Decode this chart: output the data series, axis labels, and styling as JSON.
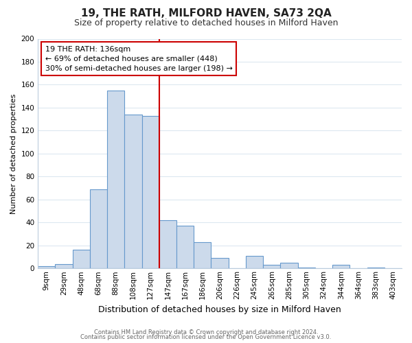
{
  "title": "19, THE RATH, MILFORD HAVEN, SA73 2QA",
  "subtitle": "Size of property relative to detached houses in Milford Haven",
  "xlabel": "Distribution of detached houses by size in Milford Haven",
  "ylabel": "Number of detached properties",
  "bar_color": "#ccdaeb",
  "bar_edge_color": "#6699cc",
  "bin_labels": [
    "9sqm",
    "29sqm",
    "48sqm",
    "68sqm",
    "88sqm",
    "108sqm",
    "127sqm",
    "147sqm",
    "167sqm",
    "186sqm",
    "206sqm",
    "226sqm",
    "245sqm",
    "265sqm",
    "285sqm",
    "305sqm",
    "324sqm",
    "344sqm",
    "364sqm",
    "383sqm",
    "403sqm"
  ],
  "bar_heights": [
    2,
    4,
    16,
    69,
    155,
    134,
    133,
    42,
    37,
    23,
    9,
    0,
    11,
    3,
    5,
    1,
    0,
    3,
    0,
    1,
    0
  ],
  "vline_x_index": 7,
  "vline_color": "#cc0000",
  "annotation_title": "19 THE RATH: 136sqm",
  "annotation_line1": "← 69% of detached houses are smaller (448)",
  "annotation_line2": "30% of semi-detached houses are larger (198) →",
  "annotation_box_color": "#ffffff",
  "annotation_box_edge_color": "#cc0000",
  "ylim": [
    0,
    200
  ],
  "yticks": [
    0,
    20,
    40,
    60,
    80,
    100,
    120,
    140,
    160,
    180,
    200
  ],
  "footer_line1": "Contains HM Land Registry data © Crown copyright and database right 2024.",
  "footer_line2": "Contains public sector information licensed under the Open Government Licence v3.0.",
  "background_color": "#ffffff",
  "grid_color": "#dce8f0",
  "title_fontsize": 11,
  "subtitle_fontsize": 9,
  "xlabel_fontsize": 9,
  "ylabel_fontsize": 8,
  "tick_fontsize": 7.5
}
